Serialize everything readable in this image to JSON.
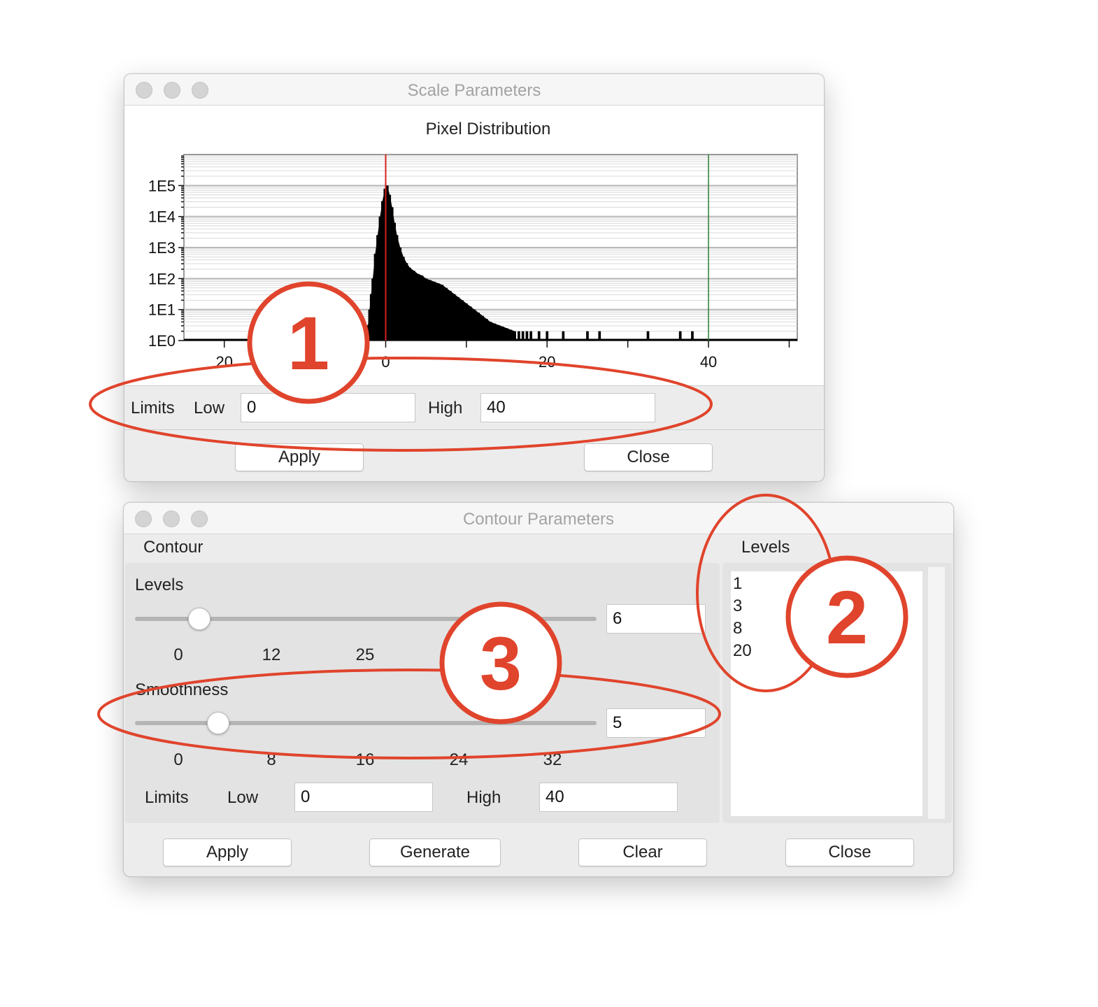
{
  "scale_window": {
    "title": "Scale Parameters",
    "chart_title": "Pixel Distribution",
    "limits_label": "Limits",
    "low_label": "Low",
    "low_value": "0",
    "high_label": "High",
    "high_value": "40",
    "apply_label": "Apply",
    "close_label": "Close"
  },
  "chart_data": {
    "type": "histogram",
    "title": "Pixel Distribution",
    "xlabel": "",
    "ylabel": "",
    "y_scale": "log",
    "y_tick_labels": [
      "1E5",
      "1E4",
      "1E3",
      "1E2",
      "1E1",
      "1E0"
    ],
    "x_tick_labels": [
      "20",
      "0",
      "20",
      "40"
    ],
    "xlim": [
      -25,
      51
    ],
    "ylim_log10": [
      0,
      6
    ],
    "low_limit_marker": 0,
    "high_limit_marker": 40,
    "low_marker_color": "#d62020",
    "high_marker_color": "#2e7d32",
    "bins": [
      {
        "x": -2.5,
        "log10": 0.3
      },
      {
        "x": -2.2,
        "log10": 0.5
      },
      {
        "x": -2.0,
        "log10": 1.0
      },
      {
        "x": -1.8,
        "log10": 1.5
      },
      {
        "x": -1.6,
        "log10": 2.0
      },
      {
        "x": -1.3,
        "log10": 2.8
      },
      {
        "x": -1.0,
        "log10": 3.4
      },
      {
        "x": -0.7,
        "log10": 4.0
      },
      {
        "x": -0.4,
        "log10": 4.5
      },
      {
        "x": -0.1,
        "log10": 4.9
      },
      {
        "x": 0.2,
        "log10": 5.0
      },
      {
        "x": 0.5,
        "log10": 4.7
      },
      {
        "x": 0.8,
        "log10": 4.3
      },
      {
        "x": 1.1,
        "log10": 3.8
      },
      {
        "x": 1.4,
        "log10": 3.4
      },
      {
        "x": 1.8,
        "log10": 3.0
      },
      {
        "x": 2.2,
        "log10": 2.7
      },
      {
        "x": 2.6,
        "log10": 2.5
      },
      {
        "x": 3.0,
        "log10": 2.35
      },
      {
        "x": 3.5,
        "log10": 2.25
      },
      {
        "x": 4.0,
        "log10": 2.15
      },
      {
        "x": 4.5,
        "log10": 2.1
      },
      {
        "x": 5.0,
        "log10": 2.0
      },
      {
        "x": 5.5,
        "log10": 1.95
      },
      {
        "x": 6.0,
        "log10": 1.9
      },
      {
        "x": 6.5,
        "log10": 1.85
      },
      {
        "x": 7.0,
        "log10": 1.8
      },
      {
        "x": 7.5,
        "log10": 1.7
      },
      {
        "x": 8.0,
        "log10": 1.6
      },
      {
        "x": 8.5,
        "log10": 1.5
      },
      {
        "x": 9.0,
        "log10": 1.4
      },
      {
        "x": 9.5,
        "log10": 1.3
      },
      {
        "x": 10.0,
        "log10": 1.2
      },
      {
        "x": 10.5,
        "log10": 1.1
      },
      {
        "x": 11.0,
        "log10": 1.0
      },
      {
        "x": 11.5,
        "log10": 0.9
      },
      {
        "x": 12.0,
        "log10": 0.8
      },
      {
        "x": 12.5,
        "log10": 0.7
      },
      {
        "x": 13.0,
        "log10": 0.6
      },
      {
        "x": 13.5,
        "log10": 0.55
      },
      {
        "x": 14.0,
        "log10": 0.5
      },
      {
        "x": 14.5,
        "log10": 0.45
      },
      {
        "x": 15.0,
        "log10": 0.4
      },
      {
        "x": 15.5,
        "log10": 0.35
      },
      {
        "x": 16.0,
        "log10": 0.3
      },
      {
        "x": 16.5,
        "log10": 0.3
      },
      {
        "x": 17.0,
        "log10": 0.3
      },
      {
        "x": 17.5,
        "log10": 0.3
      },
      {
        "x": 18.0,
        "log10": 0.3
      },
      {
        "x": 19.0,
        "log10": 0.3
      },
      {
        "x": 20.0,
        "log10": 0.3
      },
      {
        "x": 22.0,
        "log10": 0.3
      },
      {
        "x": 25.0,
        "log10": 0.3
      },
      {
        "x": 26.5,
        "log10": 0.3
      },
      {
        "x": 32.5,
        "log10": 0.3
      },
      {
        "x": 36.5,
        "log10": 0.3
      },
      {
        "x": 38.0,
        "log10": 0.3
      },
      {
        "x": -4.0,
        "log10": 0.3
      }
    ]
  },
  "contour_window": {
    "title": "Contour Parameters",
    "section_label": "Contour",
    "levels_label": "Levels",
    "levels_value": "6",
    "levels_slider_fraction": 0.14,
    "levels_ticks": [
      "0",
      "12",
      "25"
    ],
    "smoothness_label": "Smoothness",
    "smoothness_value": "5",
    "smoothness_slider_fraction": 0.18,
    "smoothness_ticks": [
      "0",
      "8",
      "16",
      "24",
      "32"
    ],
    "limits_label": "Limits",
    "low_label": "Low",
    "low_value": "0",
    "high_label": "High",
    "high_value": "40",
    "levels_list_title": "Levels",
    "levels_list": [
      "1",
      "3",
      "8",
      "20"
    ],
    "apply_label": "Apply",
    "generate_label": "Generate",
    "clear_label": "Clear",
    "close_label": "Close"
  },
  "annotations": {
    "color": "#e0442c",
    "callouts": [
      {
        "number": "1"
      },
      {
        "number": "2"
      },
      {
        "number": "3"
      }
    ]
  }
}
